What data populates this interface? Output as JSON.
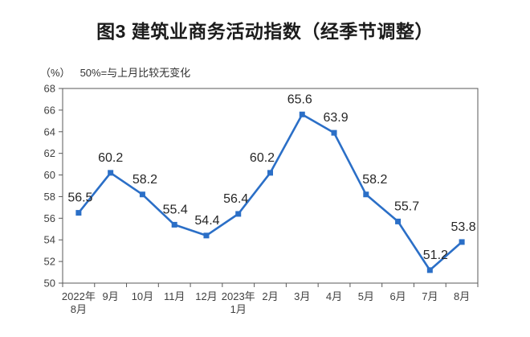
{
  "chart_data": {
    "type": "line",
    "title": "图3  建筑业商务活动指数（经季节调整）",
    "unit_label": "（%）",
    "note": "50%=与上月比较无变化",
    "categories": [
      "2022年8月",
      "9月",
      "10月",
      "11月",
      "12月",
      "2023年1月",
      "2月",
      "3月",
      "4月",
      "5月",
      "6月",
      "7月",
      "8月"
    ],
    "values": [
      56.5,
      60.2,
      58.2,
      55.4,
      54.4,
      56.4,
      60.2,
      65.6,
      63.9,
      58.2,
      55.7,
      51.2,
      53.8
    ],
    "xlabel": "",
    "ylabel": "（%）",
    "ylim": [
      50,
      68
    ],
    "ytick_step": 2,
    "grid": false,
    "legend": "none",
    "data_labels": true,
    "marker": "square",
    "line_color": "#2b6fc7",
    "label_color": "#262626",
    "axis_color": "#595959",
    "tick_label_color": "#404040",
    "title_color": "#1c1c1c"
  }
}
